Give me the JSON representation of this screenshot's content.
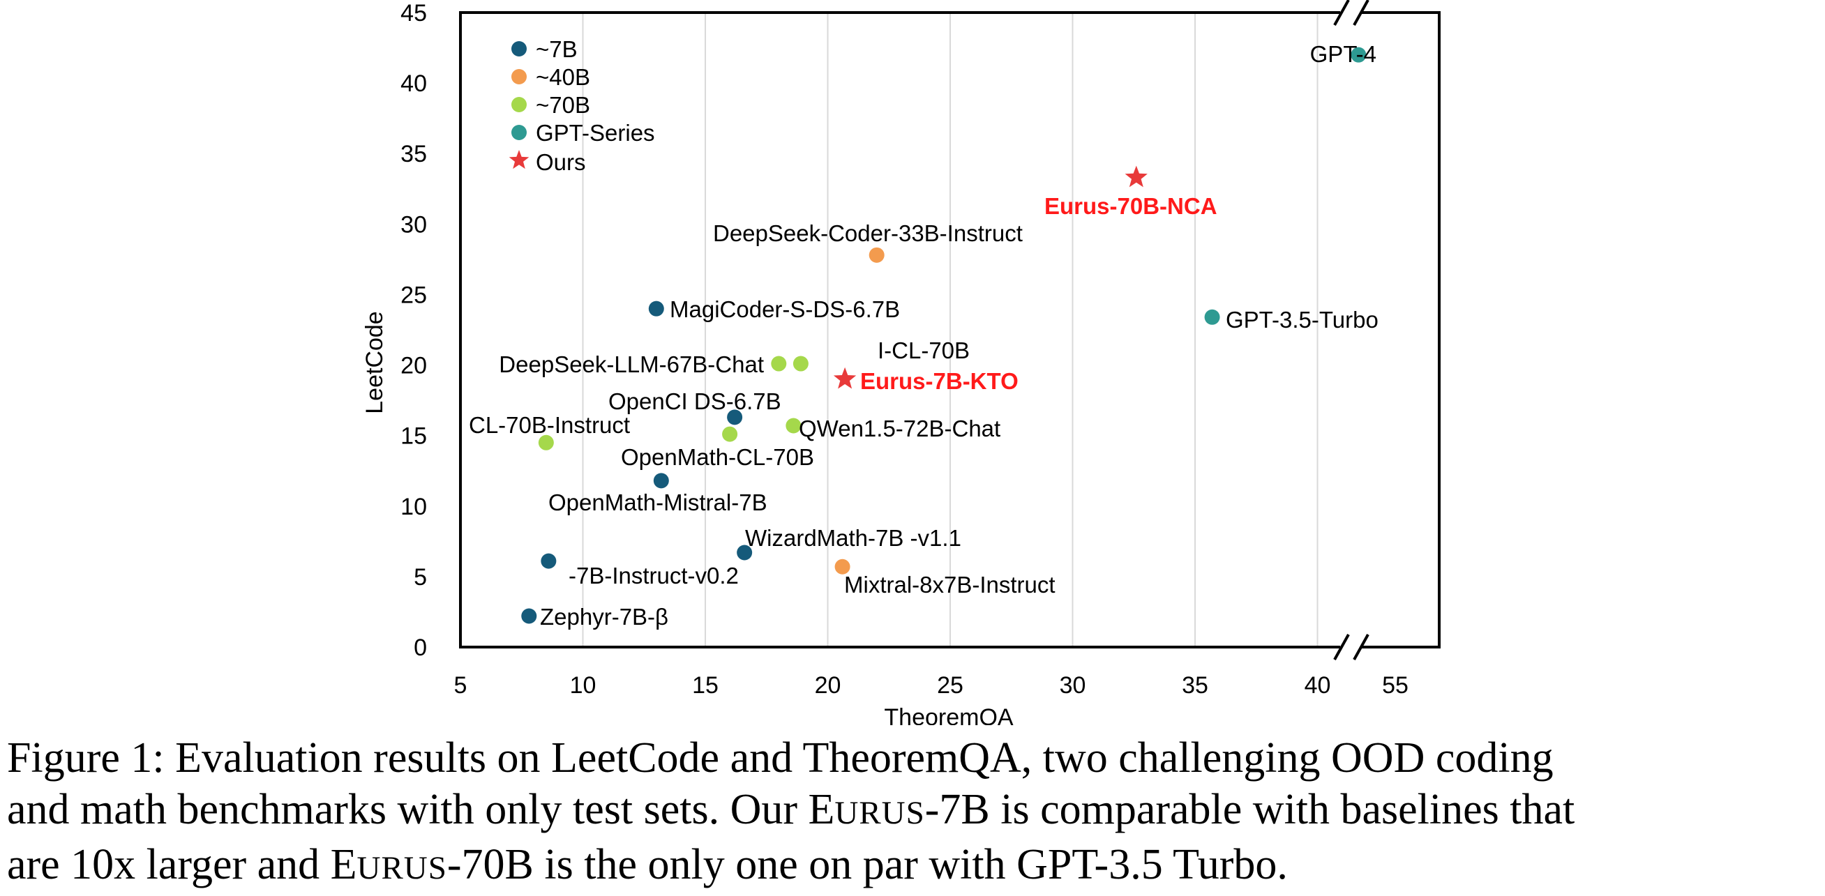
{
  "chart_data": {
    "type": "scatter",
    "xlabel": "TheoremQA",
    "ylabel": "LeetCode",
    "x_ticks": [
      "5",
      "10",
      "15",
      "20",
      "25",
      "30",
      "35",
      "40",
      "55"
    ],
    "y_ticks": [
      "0",
      "5",
      "10",
      "15",
      "20",
      "25",
      "30",
      "35",
      "40",
      "45"
    ],
    "xlim": [
      5,
      55
    ],
    "ylim": [
      0,
      45
    ],
    "x_axis_break": [
      41.5,
      52.3
    ],
    "y_axis_break": "top and bottom of right segment",
    "grid": "vertical gridlines",
    "legend": {
      "position": "top-left",
      "entries": [
        {
          "label": "~7B",
          "marker": "circle",
          "color": "#155a7a"
        },
        {
          "label": "~40B",
          "marker": "circle",
          "color": "#f39b4e"
        },
        {
          "label": "~70B",
          "marker": "circle",
          "color": "#a5d84b"
        },
        {
          "label": "GPT-Series",
          "marker": "circle",
          "color": "#2e9a92"
        },
        {
          "label": "Ours",
          "marker": "star",
          "color": "#e83a3a"
        }
      ]
    },
    "points": [
      {
        "label": "MagiCoder-S-DS-6.7B",
        "x": 13.0,
        "y": 24.0,
        "group": "~7B"
      },
      {
        "label": "OpenCI DS-6.7B",
        "x": 16.2,
        "y": 16.3,
        "group": "~7B"
      },
      {
        "label": "OpenMath-CL-70B",
        "x": 16.0,
        "y": 15.1,
        "group": "~70B"
      },
      {
        "label": "OpenMath-Mistral-7B",
        "x": 13.2,
        "y": 11.8,
        "group": "~7B"
      },
      {
        "label": "WizardMath-7B -v1.1",
        "x": 16.6,
        "y": 6.7,
        "group": "~7B"
      },
      {
        "label": "-7B-Instruct-v0.2",
        "x": 8.6,
        "y": 6.1,
        "group": "~7B"
      },
      {
        "label": "Zephyr-7B-β",
        "x": 7.8,
        "y": 2.2,
        "group": "~7B"
      },
      {
        "label": "DeepSeek-Coder-33B-Instruct",
        "x": 22.0,
        "y": 27.8,
        "group": "~40B"
      },
      {
        "label": "Mixtral-8x7B-Instruct",
        "x": 20.6,
        "y": 5.7,
        "group": "~40B"
      },
      {
        "label": "DeepSeek-LLM-67B-Chat",
        "x": 18.0,
        "y": 20.1,
        "group": "~70B"
      },
      {
        "label": "I-CL-70B",
        "x": 18.9,
        "y": 20.1,
        "group": "~70B"
      },
      {
        "label": "QWen1.5-72B-Chat",
        "x": 18.6,
        "y": 15.7,
        "group": "~70B"
      },
      {
        "label": "CL-70B-Instruct",
        "x": 8.5,
        "y": 14.5,
        "group": "~70B"
      },
      {
        "label": "GPT-3.5-Turbo",
        "x": 35.7,
        "y": 23.4,
        "group": "GPT-Series"
      },
      {
        "label": "GPT-4",
        "x": 53.5,
        "y": 42.0,
        "group": "GPT-Series"
      },
      {
        "label": "Eurus-70B-NCA",
        "x": 32.6,
        "y": 33.3,
        "group": "Ours"
      },
      {
        "label": "Eurus-7B-KTO",
        "x": 20.7,
        "y": 19.0,
        "group": "Ours"
      }
    ]
  },
  "caption": {
    "line1": "Figure 1: Evaluation results on LeetCode and TheoremQA, two challenging OOD coding",
    "line2_a": "and math benchmarks with only test sets. Our ",
    "line2_sc_big": "E",
    "line2_sc_small": "URUS",
    "line2_b": "-7B is comparable with baselines that",
    "line3_a": "are 10x larger and ",
    "line3_sc_big": "E",
    "line3_sc_small": "URUS",
    "line3_b": "-70B is the only one on par with GPT-3.5 Turbo."
  }
}
